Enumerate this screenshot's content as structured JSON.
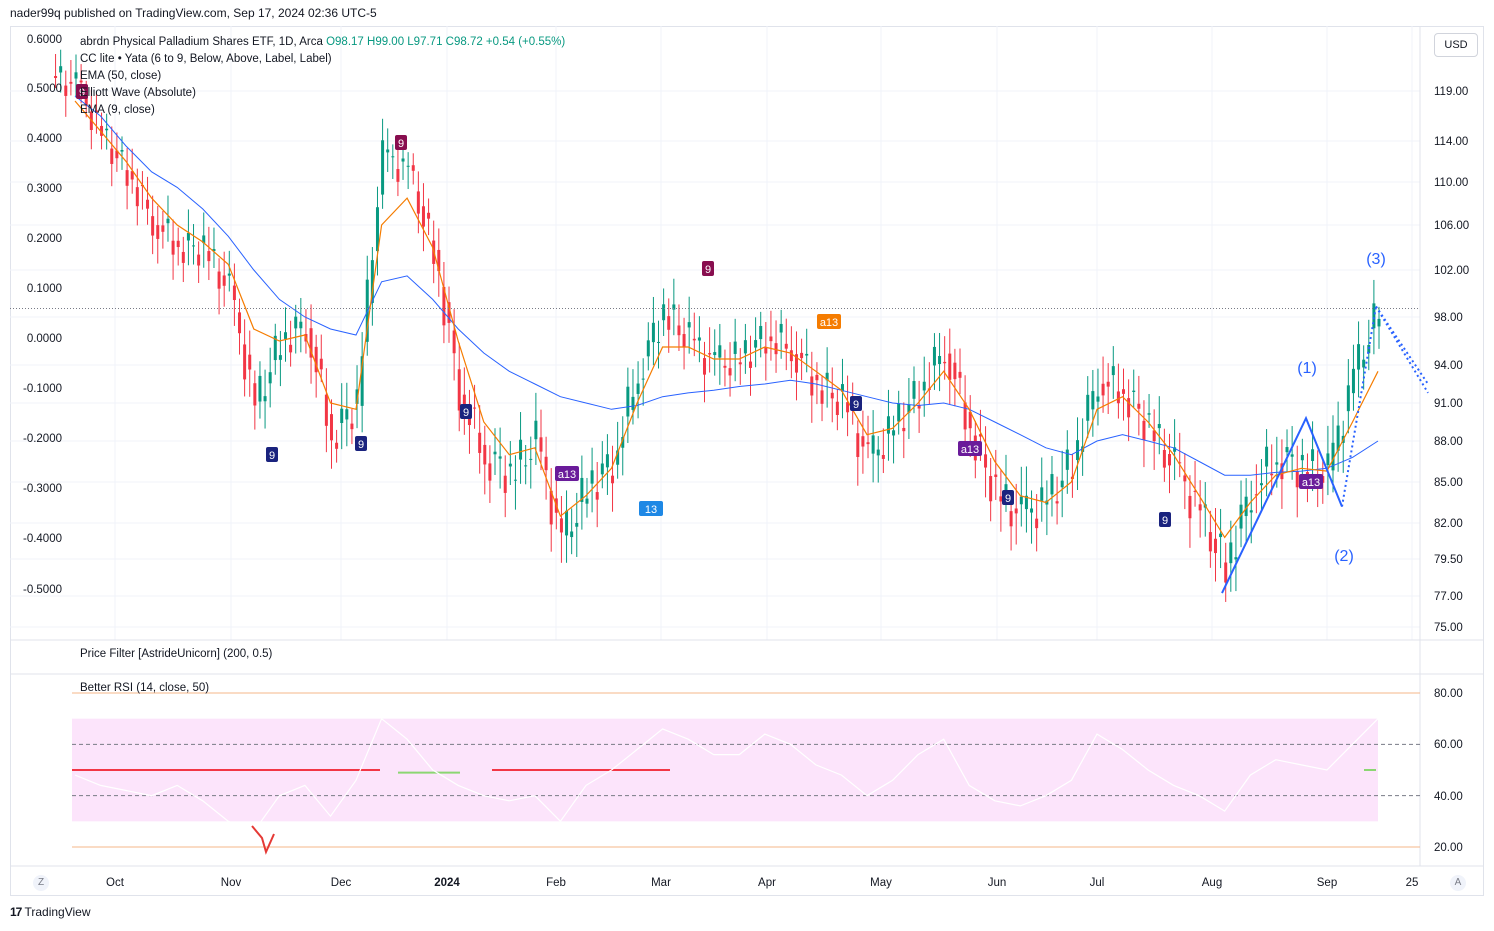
{
  "header": {
    "published": "nader99q published on TradingView.com, Sep 17, 2024 02:36 UTC-5"
  },
  "legend": {
    "symbol": "abrdn Physical Palladium Shares ETF, 1D, Arca",
    "ohlc": "O98.17 H99.00 L97.71 C98.72 +0.54 (+0.55%)",
    "indicators": [
      "CC lite • Yata (6 to 9, Below, Above, Label, Label)",
      "EMA (50, close)",
      "Elliott Wave (Absolute)",
      "EMA (9, close)"
    ]
  },
  "currency_button": "USD",
  "pane_titles": {
    "price_filter": "Price Filter [AstrideUnicorn] (200, 0.5)",
    "rsi": "Better RSI (14, close, 50)"
  },
  "left_axis_labels": [
    "0.6000",
    "0.5000",
    "0.4000",
    "0.3000",
    "0.2000",
    "0.1000",
    "0.0000",
    "-0.1000",
    "-0.2000",
    "-0.3000",
    "-0.4000",
    "-0.5000"
  ],
  "right_axis_labels": [
    "119.00",
    "114.00",
    "110.00",
    "106.00",
    "102.00",
    "98.00",
    "94.00",
    "91.00",
    "88.00",
    "85.00",
    "82.00",
    "79.50",
    "77.00",
    "75.00"
  ],
  "rsi_axis_labels": [
    "80.00",
    "60.00",
    "40.00",
    "20.00"
  ],
  "time_labels": [
    "Oct",
    "Nov",
    "Dec",
    "2024",
    "Feb",
    "Mar",
    "Apr",
    "May",
    "Jun",
    "Jul",
    "Aug",
    "Sep",
    "25"
  ],
  "wave_labels": [
    "(1)",
    "(2)",
    "(3)"
  ],
  "signal_labels": [
    "9",
    "9",
    "9",
    "9",
    "a13",
    "13",
    "9",
    "a13",
    "9",
    "a13",
    "9",
    "9",
    "9",
    "a13"
  ],
  "footer": {
    "brand": "TradingView"
  },
  "corner_buttons": {
    "left": "Z",
    "right": "A"
  },
  "colors": {
    "up": "#089981",
    "down": "#f23645",
    "ema50": "#2962ff",
    "ema9": "#f57c00",
    "rsi_band": "#fce4fb",
    "wave": "#2962ff"
  },
  "chart_data": {
    "type": "candlestick",
    "symbol": "abrdn Physical Palladium Shares ETF",
    "interval": "1D",
    "price_axis": {
      "ticks": [
        119,
        114,
        110,
        106,
        102,
        98,
        94,
        91,
        88,
        85,
        82,
        79.5,
        77,
        75
      ]
    },
    "dates": [
      "2023-09-25",
      "2023-10-02",
      "2023-10-09",
      "2023-10-16",
      "2023-10-23",
      "2023-10-30",
      "2023-11-06",
      "2023-11-13",
      "2023-11-20",
      "2023-11-27",
      "2023-12-04",
      "2023-12-11",
      "2023-12-18",
      "2023-12-26",
      "2024-01-02",
      "2024-01-08",
      "2024-01-16",
      "2024-01-22",
      "2024-01-29",
      "2024-02-05",
      "2024-02-12",
      "2024-02-20",
      "2024-02-26",
      "2024-03-04",
      "2024-03-11",
      "2024-03-18",
      "2024-03-25",
      "2024-04-01",
      "2024-04-08",
      "2024-04-15",
      "2024-04-22",
      "2024-04-29",
      "2024-05-06",
      "2024-05-13",
      "2024-05-20",
      "2024-05-28",
      "2024-06-03",
      "2024-06-10",
      "2024-06-17",
      "2024-06-24",
      "2024-07-01",
      "2024-07-08",
      "2024-07-15",
      "2024-07-22",
      "2024-07-29",
      "2024-08-05",
      "2024-08-12",
      "2024-08-19",
      "2024-08-26",
      "2024-09-03",
      "2024-09-09",
      "2024-09-16"
    ],
    "close": [
      119.5,
      114.5,
      111.0,
      106.5,
      104.2,
      103.8,
      100.2,
      90.5,
      96.0,
      97.5,
      88.5,
      91.0,
      112.5,
      111.0,
      103.5,
      92.0,
      87.0,
      85.5,
      88.0,
      80.5,
      84.5,
      86.5,
      93.5,
      98.5,
      96.0,
      94.0,
      94.5,
      96.5,
      95.5,
      92.5,
      91.0,
      86.5,
      89.0,
      92.0,
      95.5,
      89.0,
      84.0,
      82.5,
      83.5,
      86.5,
      93.0,
      92.0,
      89.0,
      86.0,
      82.5,
      79.0,
      84.5,
      87.0,
      86.0,
      85.5,
      93.0,
      98.7
    ],
    "ema50": [
      118.5,
      116.5,
      113.5,
      111.0,
      109.5,
      107.5,
      105.0,
      102.0,
      99.5,
      98.0,
      97.0,
      96.5,
      101.0,
      101.5,
      99.5,
      97.0,
      95.0,
      93.5,
      92.5,
      91.5,
      91.0,
      90.5,
      90.8,
      91.5,
      91.8,
      92.0,
      92.3,
      92.5,
      92.8,
      92.5,
      92.0,
      91.5,
      91.0,
      90.8,
      91.0,
      90.5,
      89.5,
      88.5,
      87.5,
      87.0,
      88.0,
      88.5,
      88.0,
      87.5,
      86.5,
      85.5,
      85.5,
      85.7,
      85.8,
      86.0,
      86.8,
      88.0
    ],
    "ema9": [
      118.0,
      115.0,
      112.0,
      108.5,
      106.0,
      104.5,
      102.5,
      97.0,
      96.0,
      96.5,
      91.0,
      90.5,
      106.0,
      108.5,
      104.0,
      96.0,
      89.5,
      87.0,
      87.5,
      82.5,
      84.0,
      86.0,
      91.0,
      95.5,
      95.5,
      94.5,
      94.5,
      95.5,
      95.0,
      93.5,
      92.0,
      88.5,
      89.0,
      91.0,
      93.5,
      90.5,
      86.5,
      84.0,
      83.5,
      85.0,
      90.5,
      91.5,
      89.5,
      87.0,
      84.0,
      81.0,
      83.5,
      85.5,
      86.0,
      85.8,
      89.5,
      93.5
    ],
    "elliott_wave": [
      {
        "label": "(1)",
        "price": 89.8
      },
      {
        "label": "(2)",
        "price": 83.2
      },
      {
        "label": "(3)",
        "price": 98.9
      }
    ],
    "last_price": 98.72,
    "sub_panes": {
      "price_filter": {
        "period": 200,
        "threshold": 0.5,
        "axis_ticks": [
          0.6,
          0.5,
          0.4,
          0.3,
          0.2,
          0.1,
          0,
          -0.1,
          -0.2,
          -0.3,
          -0.4,
          -0.5
        ]
      },
      "rsi": {
        "length": 14,
        "source": "close",
        "midline": 50,
        "levels": [
          80,
          60,
          40,
          20
        ],
        "values": [
          48,
          44,
          42,
          40,
          44,
          38,
          30,
          26,
          40,
          44,
          32,
          46,
          70,
          62,
          50,
          44,
          40,
          38,
          40,
          30,
          44,
          50,
          58,
          66,
          62,
          56,
          56,
          64,
          60,
          52,
          48,
          40,
          46,
          56,
          62,
          44,
          38,
          36,
          40,
          46,
          64,
          58,
          50,
          44,
          40,
          34,
          48,
          54,
          52,
          50,
          60,
          70
        ]
      }
    }
  }
}
